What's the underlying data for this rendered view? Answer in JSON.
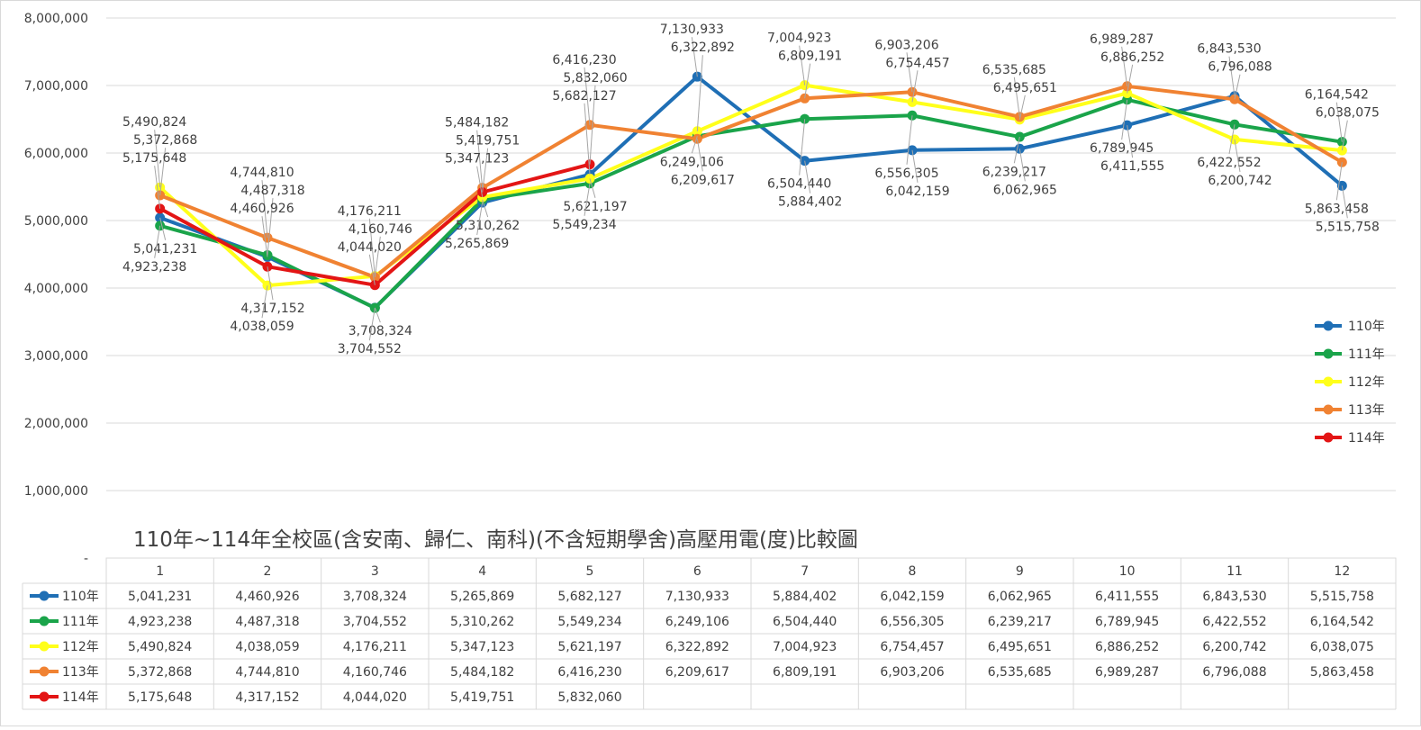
{
  "chart_data": {
    "type": "line",
    "title": "110年~114年全校區(含安南、歸仁、南科)(不含短期學舍)高壓用電(度)比較圖",
    "xlabel": "",
    "ylabel": "",
    "ylim": [
      0,
      8000000
    ],
    "y_ticks": [
      "8,000,000",
      "7,000,000",
      "6,000,000",
      "5,000,000",
      "4,000,000",
      "3,000,000",
      "2,000,000",
      "1,000,000",
      "-"
    ],
    "categories": [
      "1",
      "2",
      "3",
      "4",
      "5",
      "6",
      "7",
      "8",
      "9",
      "10",
      "11",
      "12"
    ],
    "grid": "horizontal",
    "legend_position": "right",
    "series": [
      {
        "name": "110年",
        "color": "#1f6fb5",
        "values": [
          5041231,
          4460926,
          3708324,
          5265869,
          5682127,
          7130933,
          5884402,
          6042159,
          6062965,
          6411555,
          6843530,
          5515758
        ],
        "labels": [
          "5,041,231",
          "4,460,926",
          "3,708,324",
          "5,265,869",
          "5,682,127",
          "7,130,933",
          "5,884,402",
          "6,042,159",
          "6,062,965",
          "6,411,555",
          "6,843,530",
          "5,515,758"
        ]
      },
      {
        "name": "111年",
        "color": "#1aa44a",
        "values": [
          4923238,
          4487318,
          3704552,
          5310262,
          5549234,
          6249106,
          6504440,
          6556305,
          6239217,
          6789945,
          6422552,
          6164542
        ],
        "labels": [
          "4,923,238",
          "4,487,318",
          "3,704,552",
          "5,310,262",
          "5,549,234",
          "6,249,106",
          "6,504,440",
          "6,556,305",
          "6,239,217",
          "6,789,945",
          "6,422,552",
          "6,164,542"
        ]
      },
      {
        "name": "112年",
        "color": "#ffff1a",
        "values": [
          5490824,
          4038059,
          4176211,
          5347123,
          5621197,
          6322892,
          7004923,
          6754457,
          6495651,
          6886252,
          6200742,
          6038075
        ],
        "labels": [
          "5,490,824",
          "4,038,059",
          "4,176,211",
          "5,347,123",
          "5,621,197",
          "6,322,892",
          "7,004,923",
          "6,754,457",
          "6,495,651",
          "6,886,252",
          "6,200,742",
          "6,038,075"
        ]
      },
      {
        "name": "113年",
        "color": "#f08232",
        "values": [
          5372868,
          4744810,
          4160746,
          5484182,
          6416230,
          6209617,
          6809191,
          6903206,
          6535685,
          6989287,
          6796088,
          5863458
        ],
        "labels": [
          "5,372,868",
          "4,744,810",
          "4,160,746",
          "5,484,182",
          "6,416,230",
          "6,209,617",
          "6,809,191",
          "6,903,206",
          "6,535,685",
          "6,989,287",
          "6,796,088",
          "5,863,458"
        ]
      },
      {
        "name": "114年",
        "color": "#e31515",
        "values": [
          5175648,
          4317152,
          4044020,
          5419751,
          5832060,
          null,
          null,
          null,
          null,
          null,
          null,
          null
        ],
        "labels": [
          "5,175,648",
          "4,317,152",
          "4,044,020",
          "5,419,751",
          "5,832,060",
          "",
          "",
          "",
          "",
          "",
          "",
          ""
        ]
      }
    ]
  }
}
